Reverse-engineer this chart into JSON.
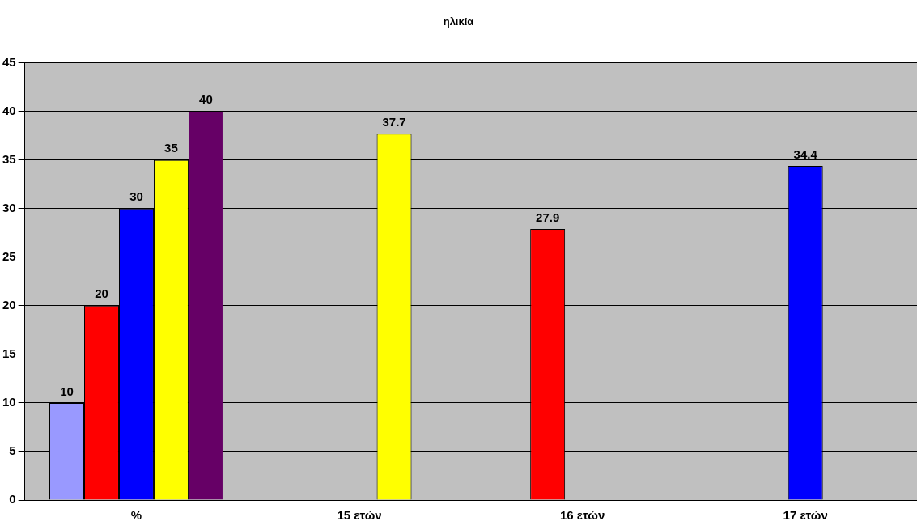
{
  "chart_data": {
    "type": "bar",
    "title": "ηλικία",
    "categories": [
      "%",
      "15 ετών",
      "16 ετών",
      "17 ετών"
    ],
    "series": [
      {
        "color": "#9999ff",
        "values": [
          10,
          null,
          null,
          null
        ]
      },
      {
        "color": "#ff0000",
        "values": [
          20,
          null,
          27.9,
          null
        ]
      },
      {
        "color": "#0000ff",
        "values": [
          30,
          null,
          null,
          34.4
        ]
      },
      {
        "color": "#ffff00",
        "values": [
          35,
          37.7,
          null,
          null
        ]
      },
      {
        "color": "#660066",
        "values": [
          40,
          null,
          null,
          null
        ]
      }
    ],
    "ylim": [
      0,
      45
    ],
    "yticks": [
      0,
      5,
      10,
      15,
      20,
      25,
      30,
      35,
      40,
      45
    ],
    "grid": "y",
    "data_labels": true,
    "legend": false
  }
}
